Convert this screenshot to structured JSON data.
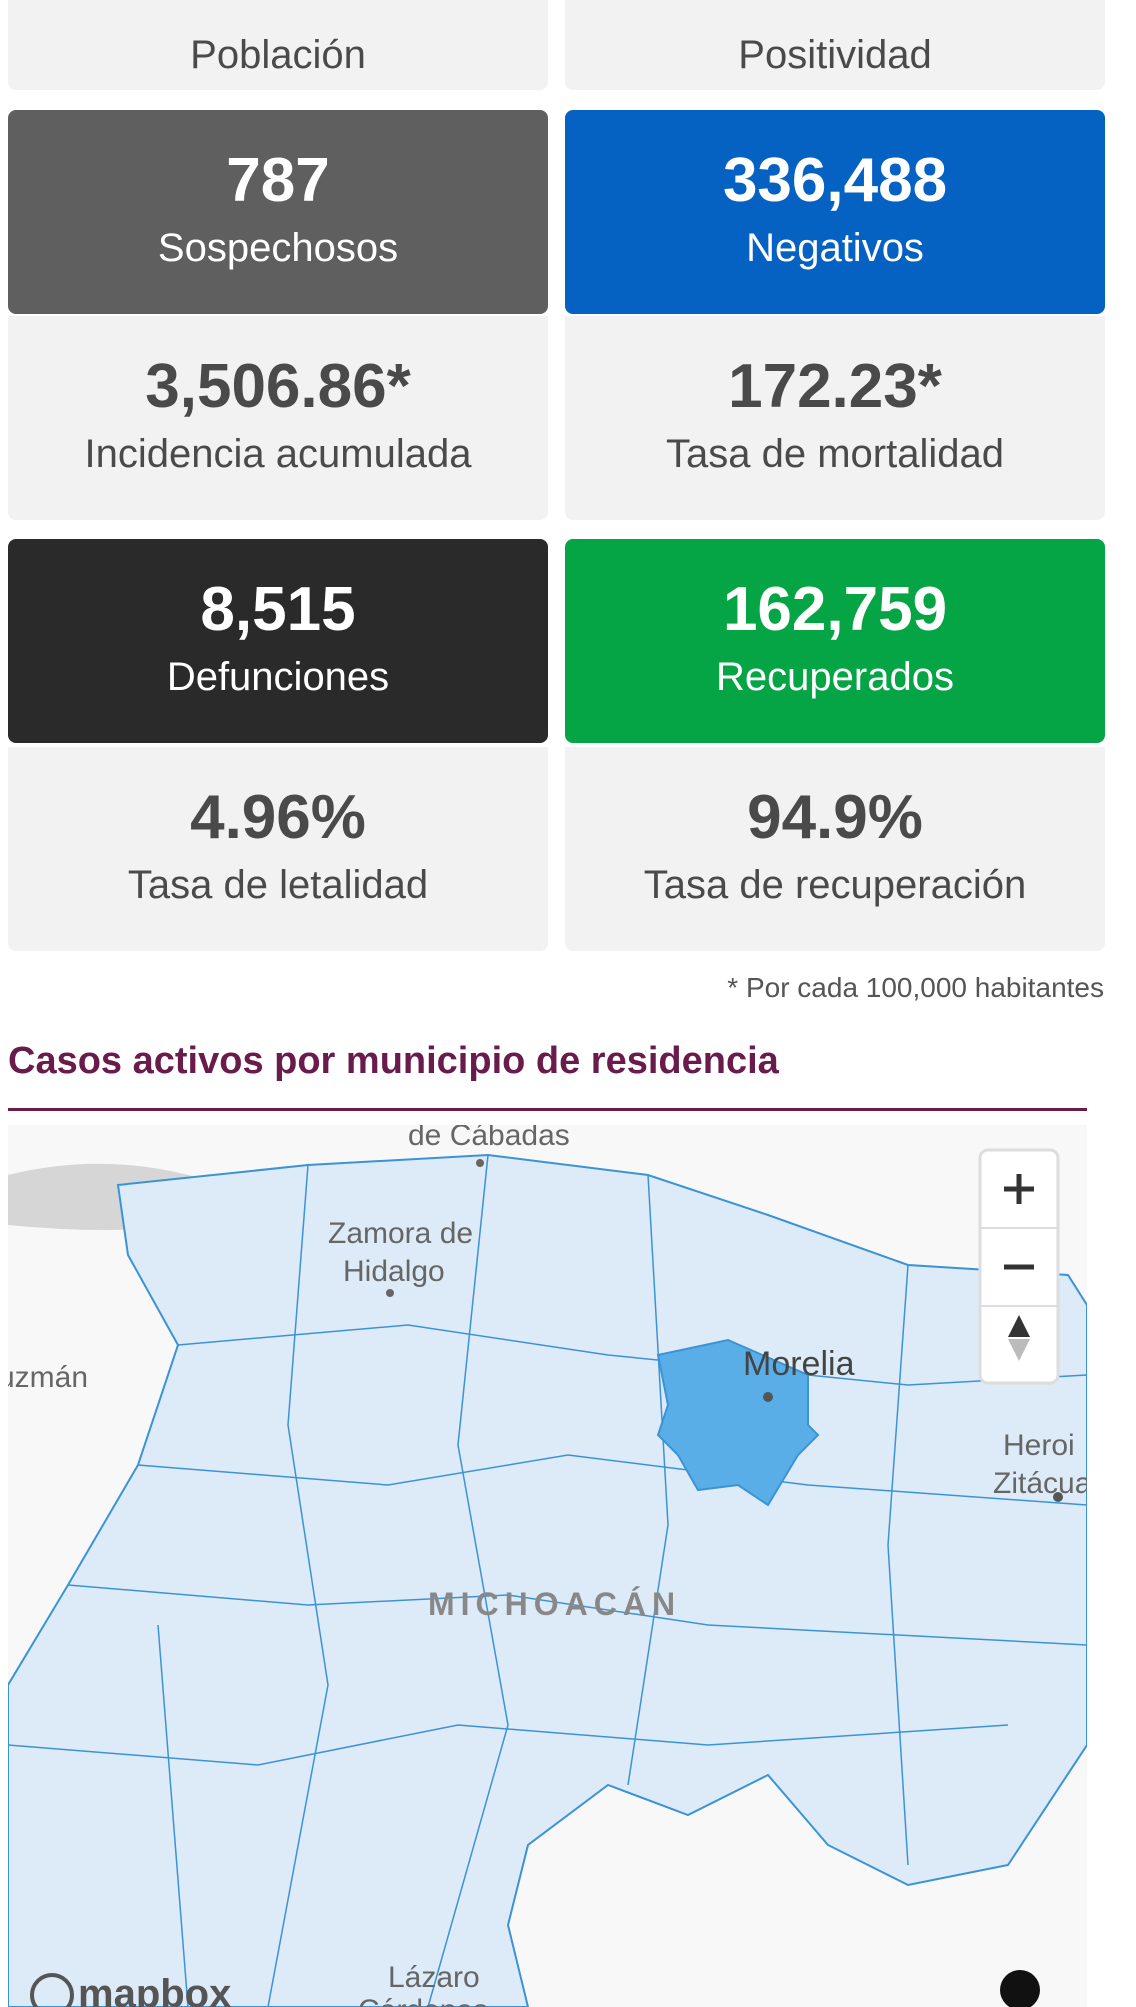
{
  "top_labels": [
    "Población",
    "Positividad"
  ],
  "cards": [
    {
      "value": "787",
      "label": "Sospechosos",
      "color": "#5f5f5f"
    },
    {
      "value": "336,488",
      "label": "Negativos",
      "color": "#0561c2"
    },
    {
      "value": "3,506.86*",
      "label": "Incidencia acumulada"
    },
    {
      "value": "172.23*",
      "label": "Tasa de mortalidad"
    },
    {
      "value": "8,515",
      "label": "Defunciones",
      "color": "#2a2a2a"
    },
    {
      "value": "162,759",
      "label": "Recuperados",
      "color": "#05a546"
    },
    {
      "value": "4.96%",
      "label": "Tasa de letalidad"
    },
    {
      "value": "94.9%",
      "label": "Tasa de recuperación"
    }
  ],
  "footnote": "* Por cada 100,000 habitantes",
  "section_title": "Casos activos por municipio de residencia",
  "map": {
    "labels": [
      "de Cábadas",
      "Zamora de",
      "Hidalgo",
      "uzmán",
      "Morelia",
      "Heroi",
      "Zitácua",
      "MICHOACÁN",
      "Lázaro",
      "Cárdenas"
    ],
    "attribution": "mapbox"
  }
}
